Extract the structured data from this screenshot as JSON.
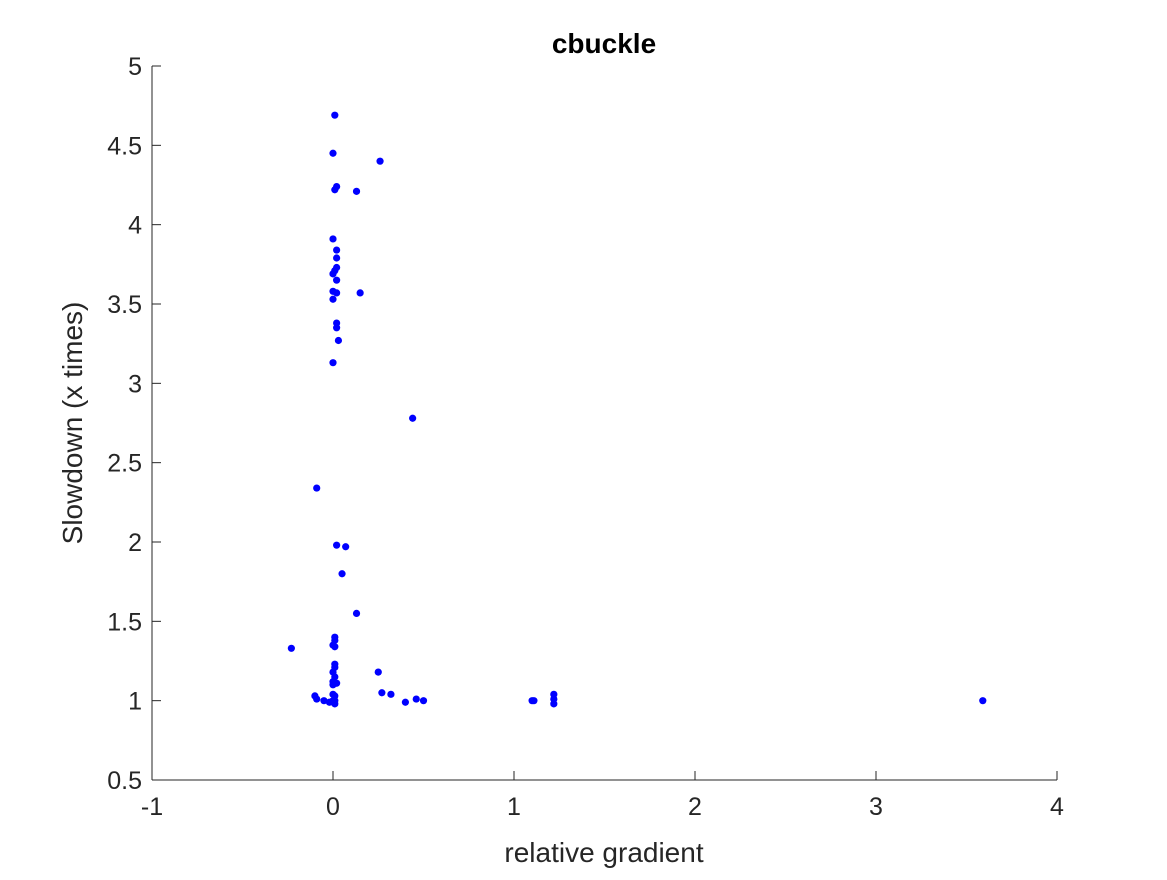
{
  "chart_data": {
    "type": "scatter",
    "title": "cbuckle",
    "xlabel": "relative gradient",
    "ylabel": "Slowdown (x times)",
    "xlim": [
      -1,
      4
    ],
    "ylim": [
      0.5,
      5
    ],
    "xticks": [
      -1,
      0,
      1,
      2,
      3,
      4
    ],
    "xtick_labels": [
      "-1",
      "0",
      "1",
      "2",
      "3",
      "4"
    ],
    "yticks": [
      0.5,
      1,
      1.5,
      2,
      2.5,
      3,
      3.5,
      4,
      4.5,
      5
    ],
    "ytick_labels": [
      "0.5",
      "1",
      "1.5",
      "2",
      "2.5",
      "3",
      "3.5",
      "4",
      "4.5",
      "5"
    ],
    "grid": false,
    "marker_color": "#0000ff",
    "points": [
      {
        "x": 0.01,
        "y": 4.69
      },
      {
        "x": 0.0,
        "y": 4.45
      },
      {
        "x": 0.26,
        "y": 4.4
      },
      {
        "x": 0.02,
        "y": 4.24
      },
      {
        "x": 0.01,
        "y": 4.22
      },
      {
        "x": 0.13,
        "y": 4.21
      },
      {
        "x": 0.0,
        "y": 3.91
      },
      {
        "x": 0.02,
        "y": 3.84
      },
      {
        "x": 0.02,
        "y": 3.79
      },
      {
        "x": 0.02,
        "y": 3.73
      },
      {
        "x": 0.01,
        "y": 3.71
      },
      {
        "x": 0.0,
        "y": 3.69
      },
      {
        "x": 0.02,
        "y": 3.65
      },
      {
        "x": 0.0,
        "y": 3.58
      },
      {
        "x": 0.02,
        "y": 3.57
      },
      {
        "x": 0.15,
        "y": 3.57
      },
      {
        "x": 0.0,
        "y": 3.53
      },
      {
        "x": 0.02,
        "y": 3.38
      },
      {
        "x": 0.02,
        "y": 3.35
      },
      {
        "x": 0.03,
        "y": 3.27
      },
      {
        "x": 0.0,
        "y": 3.13
      },
      {
        "x": 0.44,
        "y": 2.78
      },
      {
        "x": -0.09,
        "y": 2.34
      },
      {
        "x": 0.02,
        "y": 1.98
      },
      {
        "x": 0.07,
        "y": 1.97
      },
      {
        "x": 0.05,
        "y": 1.8
      },
      {
        "x": 0.13,
        "y": 1.55
      },
      {
        "x": 0.01,
        "y": 1.4
      },
      {
        "x": 0.01,
        "y": 1.38
      },
      {
        "x": 0.0,
        "y": 1.35
      },
      {
        "x": 0.01,
        "y": 1.34
      },
      {
        "x": -0.23,
        "y": 1.33
      },
      {
        "x": 0.01,
        "y": 1.23
      },
      {
        "x": 0.01,
        "y": 1.21
      },
      {
        "x": 0.0,
        "y": 1.18
      },
      {
        "x": 0.25,
        "y": 1.18
      },
      {
        "x": 0.01,
        "y": 1.15
      },
      {
        "x": 0.0,
        "y": 1.12
      },
      {
        "x": 0.02,
        "y": 1.11
      },
      {
        "x": 0.0,
        "y": 1.1
      },
      {
        "x": 0.27,
        "y": 1.05
      },
      {
        "x": 0.32,
        "y": 1.04
      },
      {
        "x": 0.0,
        "y": 1.04
      },
      {
        "x": 0.01,
        "y": 1.03
      },
      {
        "x": 1.22,
        "y": 1.04
      },
      {
        "x": -0.1,
        "y": 1.03
      },
      {
        "x": -0.09,
        "y": 1.01
      },
      {
        "x": 0.46,
        "y": 1.01
      },
      {
        "x": 1.22,
        "y": 1.01
      },
      {
        "x": -0.05,
        "y": 1.0
      },
      {
        "x": 0.0,
        "y": 1.0
      },
      {
        "x": 0.01,
        "y": 1.0
      },
      {
        "x": 0.5,
        "y": 1.0
      },
      {
        "x": 1.1,
        "y": 1.0
      },
      {
        "x": 1.11,
        "y": 1.0
      },
      {
        "x": 3.59,
        "y": 1.0
      },
      {
        "x": 0.4,
        "y": 0.99
      },
      {
        "x": -0.02,
        "y": 0.99
      },
      {
        "x": 1.22,
        "y": 0.98
      },
      {
        "x": 0.01,
        "y": 0.98
      }
    ]
  }
}
